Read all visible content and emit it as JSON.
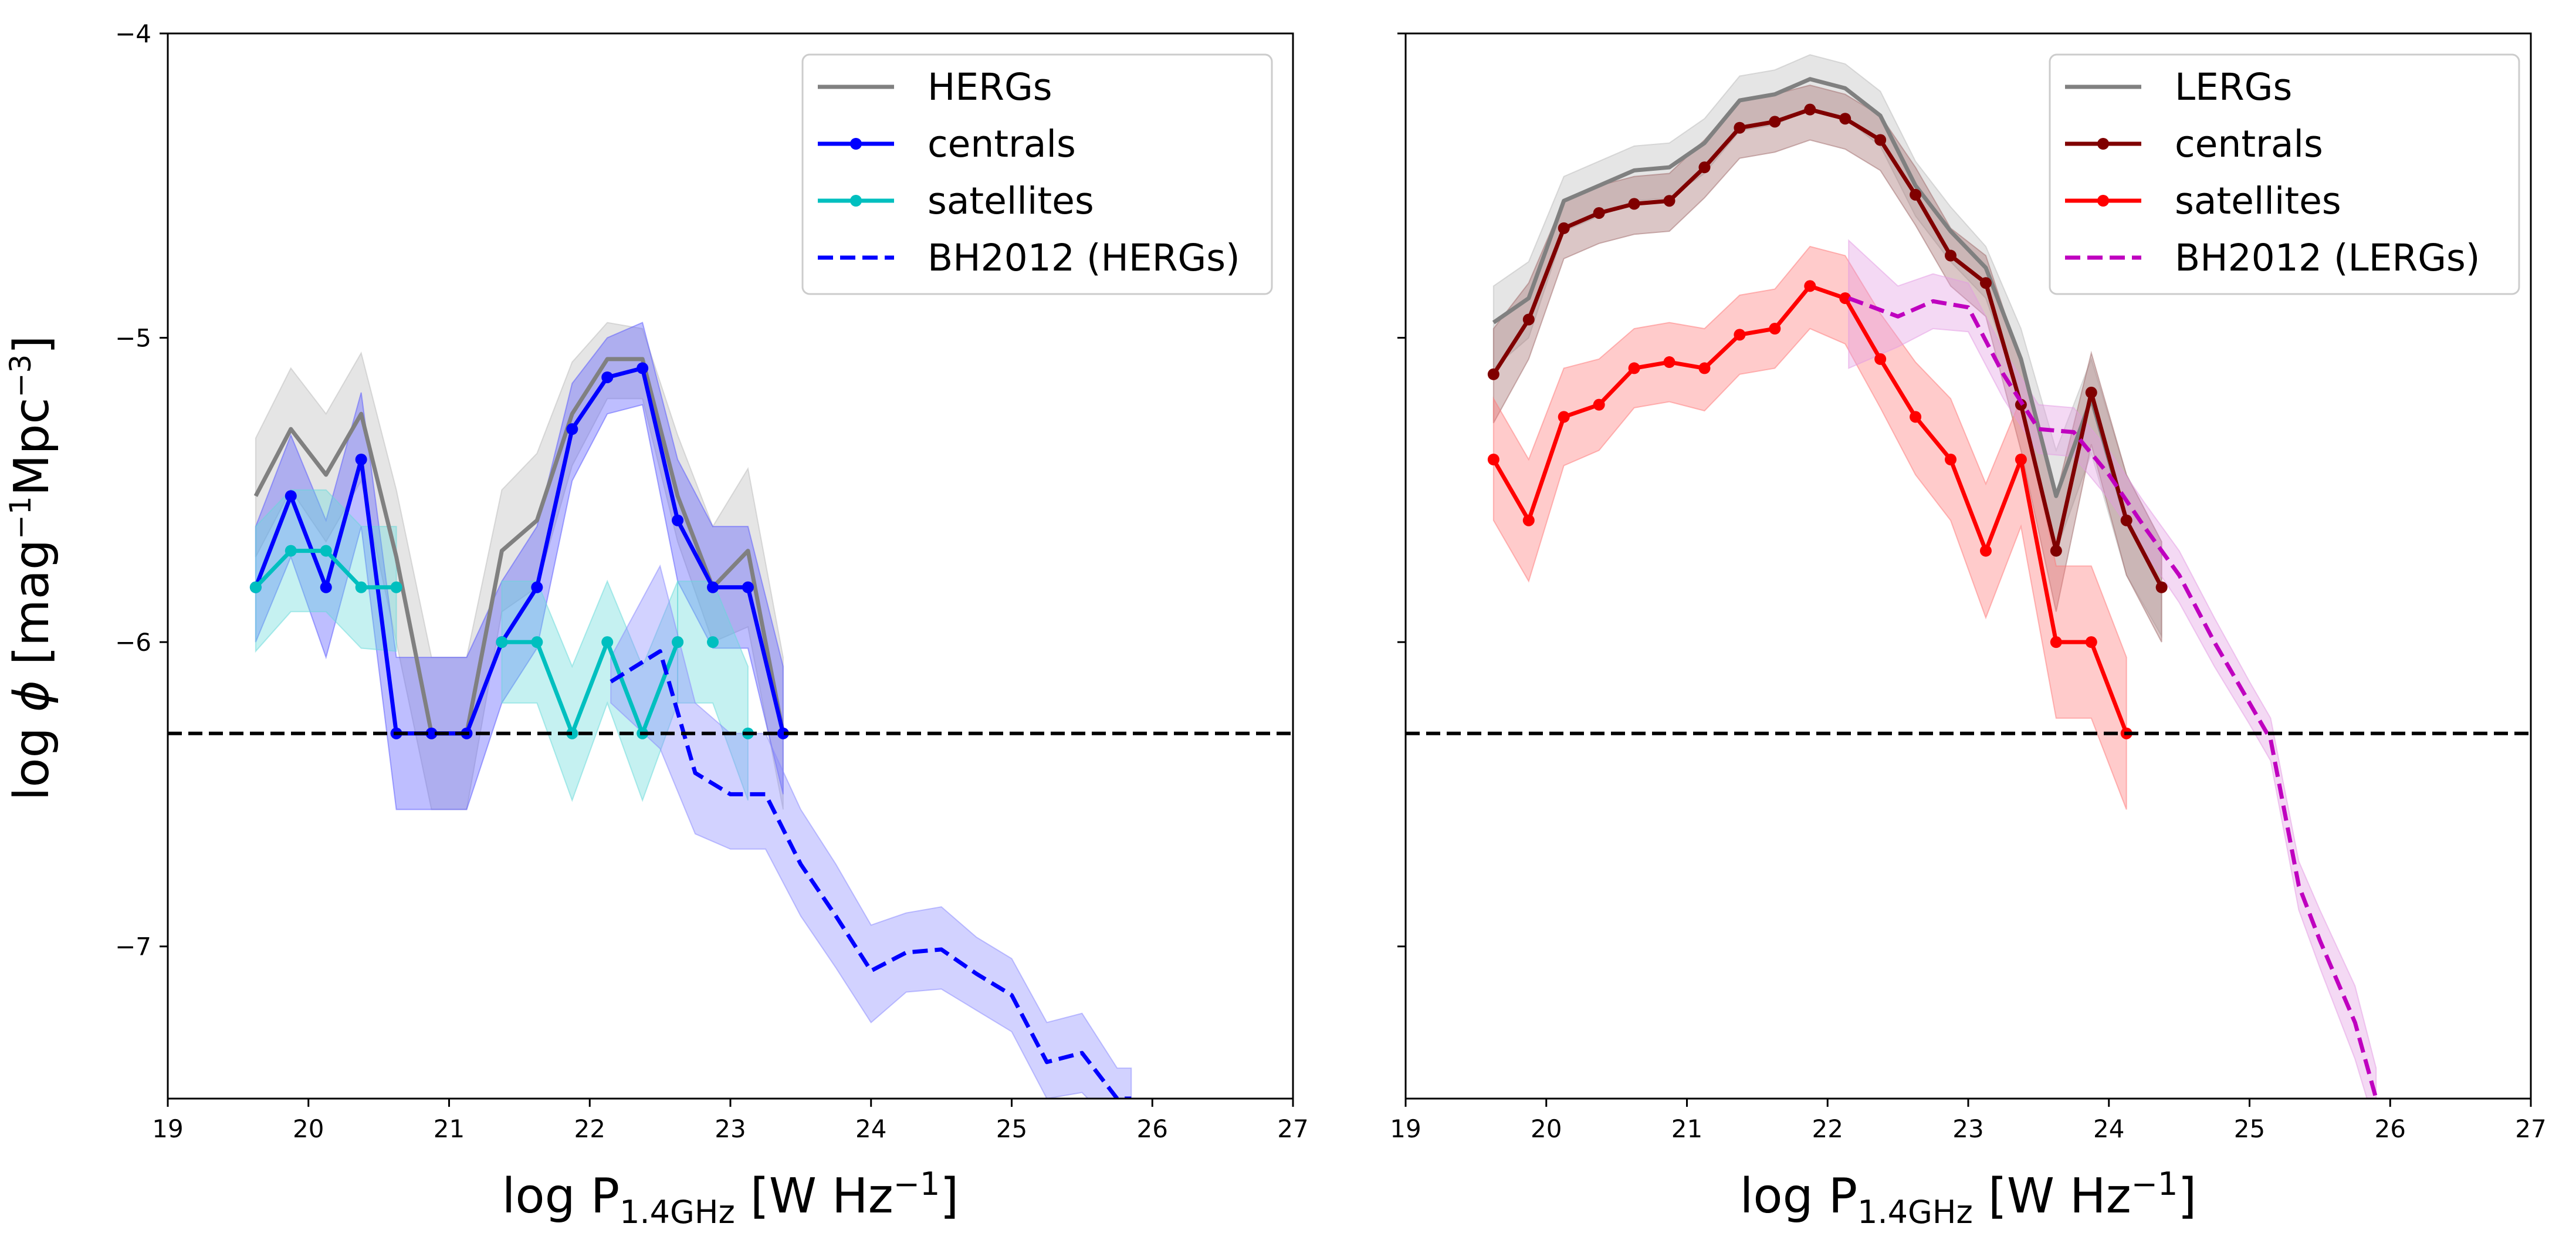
{
  "chart_data": [
    {
      "type": "line",
      "panel": "left",
      "xlabel": "log P_1.4GHz [W Hz^-1]",
      "ylabel": "log φ [mag^-1 Mpc^-3]",
      "xlim": [
        19,
        27
      ],
      "ylim": [
        -7.5,
        -4
      ],
      "xticks": [
        "19",
        "20",
        "21",
        "22",
        "23",
        "24",
        "25",
        "26",
        "27"
      ],
      "yticks": [
        "−7",
        "−6",
        "−5",
        "−4"
      ],
      "hline": -6.3,
      "legend_position": "top-right",
      "series": [
        {
          "name": "HERGs",
          "color": "#808080",
          "style": "solid",
          "markers": false,
          "band": "#bbbbbb",
          "x": [
            19.625,
            19.875,
            20.125,
            20.375,
            20.625,
            20.875,
            21.125,
            21.375,
            21.625,
            21.875,
            22.125,
            22.375,
            22.625,
            22.875,
            23.125,
            23.375
          ],
          "y": [
            -5.52,
            -5.3,
            -5.45,
            -5.25,
            -5.72,
            -6.3,
            -6.3,
            -5.7,
            -5.6,
            -5.25,
            -5.07,
            -5.07,
            -5.52,
            -5.82,
            -5.7,
            -6.3
          ],
          "lo": [
            -5.72,
            -5.5,
            -5.67,
            -5.47,
            -6.0,
            -6.55,
            -6.55,
            -5.9,
            -5.82,
            -5.42,
            -5.2,
            -5.2,
            -5.67,
            -6.0,
            -5.95,
            -6.55
          ],
          "hi": [
            -5.33,
            -5.1,
            -5.25,
            -5.05,
            -5.5,
            -6.05,
            -6.05,
            -5.5,
            -5.38,
            -5.08,
            -4.95,
            -4.97,
            -5.32,
            -5.62,
            -5.43,
            -6.05
          ]
        },
        {
          "name": "centrals",
          "color": "#0000ff",
          "style": "solid",
          "markers": true,
          "band": "#5555ff",
          "x": [
            19.625,
            19.875,
            20.125,
            20.375,
            20.625,
            20.875,
            21.125,
            21.375,
            21.625,
            21.875,
            22.125,
            22.375,
            22.625,
            22.875,
            23.125,
            23.375
          ],
          "y": [
            -5.82,
            -5.52,
            -5.82,
            -5.4,
            -6.3,
            -6.3,
            -6.3,
            -6.0,
            -5.82,
            -5.3,
            -5.13,
            -5.1,
            -5.6,
            -5.82,
            -5.82,
            -6.3
          ],
          "lo": [
            -6.0,
            -5.72,
            -6.05,
            -5.62,
            -6.55,
            -6.55,
            -6.55,
            -6.2,
            -6.02,
            -5.47,
            -5.25,
            -5.22,
            -5.8,
            -6.02,
            -6.02,
            -6.5
          ],
          "hi": [
            -5.62,
            -5.32,
            -5.6,
            -5.18,
            -6.05,
            -6.05,
            -6.05,
            -5.8,
            -5.62,
            -5.15,
            -5.0,
            -4.95,
            -5.4,
            -5.62,
            -5.62,
            -6.08
          ]
        },
        {
          "name": "satellites",
          "color": "#00bfbf",
          "style": "solid",
          "markers": true,
          "band": "#66d9d9",
          "x": [
            19.625,
            19.875,
            20.125,
            20.375,
            20.625
          ],
          "y": [
            -5.82,
            -5.7,
            -5.7,
            -5.82,
            -5.82
          ],
          "lo": [
            -6.03,
            -5.9,
            -5.9,
            -6.02,
            -6.03
          ],
          "hi": [
            -5.62,
            -5.5,
            -5.5,
            -5.62,
            -5.62
          ]
        },
        {
          "name": "",
          "legend": false,
          "color": "#00bfbf",
          "style": "solid",
          "markers": true,
          "band": "#66d9d9",
          "x": [
            21.375,
            21.625,
            21.875,
            22.125,
            22.375,
            22.625
          ],
          "y": [
            -6.0,
            -6.0,
            -6.3,
            -6.0,
            -6.3,
            -6.0
          ],
          "lo": [
            -6.2,
            -6.2,
            -6.52,
            -6.2,
            -6.52,
            -6.2
          ],
          "hi": [
            -5.8,
            -5.8,
            -6.08,
            -5.8,
            -6.08,
            -5.8
          ]
        },
        {
          "name": "",
          "legend": false,
          "color": "#00bfbf",
          "style": "solid",
          "markers": true,
          "band": "#66d9d9",
          "x": [
            22.625,
            22.875,
            23.125
          ],
          "y": [
            -6.0,
            -6.0,
            -6.3
          ],
          "lo": [
            -6.2,
            -6.2,
            -6.52
          ],
          "hi": [
            -5.8,
            -5.8,
            -6.08
          ],
          "line": false
        },
        {
          "name": "BH2012 (HERGs)",
          "color": "#0000ff",
          "style": "dashed",
          "markers": false,
          "band": "#8888ff",
          "x": [
            22.15,
            22.5,
            22.75,
            23.0,
            23.25,
            23.5,
            23.75,
            24.0,
            24.25,
            24.5,
            24.75,
            25.0,
            25.25,
            25.5,
            25.75,
            25.85
          ],
          "y": [
            -6.13,
            -6.03,
            -6.43,
            -6.5,
            -6.5,
            -6.73,
            -6.9,
            -7.08,
            -7.02,
            -7.01,
            -7.09,
            -7.16,
            -7.38,
            -7.35,
            -7.5,
            -7.5
          ],
          "lo": [
            -6.2,
            -6.35,
            -6.63,
            -6.68,
            -6.68,
            -6.9,
            -7.07,
            -7.25,
            -7.15,
            -7.14,
            -7.21,
            -7.28,
            -7.5,
            -7.48,
            -7.6,
            -7.6
          ],
          "hi": [
            -6.05,
            -5.75,
            -6.2,
            -6.3,
            -6.3,
            -6.55,
            -6.73,
            -6.93,
            -6.89,
            -6.87,
            -6.97,
            -7.04,
            -7.25,
            -7.22,
            -7.4,
            -7.4
          ]
        }
      ]
    },
    {
      "type": "line",
      "panel": "right",
      "xlabel": "log P_1.4GHz [W Hz^-1]",
      "ylabel": "",
      "xlim": [
        19,
        27
      ],
      "ylim": [
        -7.5,
        -4
      ],
      "xticks": [
        "19",
        "20",
        "21",
        "22",
        "23",
        "24",
        "25",
        "26",
        "27"
      ],
      "yticks": [],
      "hline": -6.3,
      "legend_position": "top-right",
      "series": [
        {
          "name": "LERGs",
          "color": "#808080",
          "style": "solid",
          "markers": false,
          "band": "#bbbbbb",
          "x": [
            19.625,
            19.875,
            20.125,
            20.375,
            20.625,
            20.875,
            21.125,
            21.375,
            21.625,
            21.875,
            22.125,
            22.375,
            22.625,
            22.875,
            23.125,
            23.375,
            23.625,
            23.875,
            24.125,
            24.375
          ],
          "y": [
            -4.95,
            -4.87,
            -4.55,
            -4.5,
            -4.45,
            -4.44,
            -4.36,
            -4.22,
            -4.2,
            -4.15,
            -4.18,
            -4.27,
            -4.5,
            -4.65,
            -4.77,
            -5.07,
            -5.52,
            -5.2,
            -5.6,
            -5.82
          ],
          "lo": [
            -5.1,
            -5.0,
            -4.65,
            -4.6,
            -4.55,
            -4.54,
            -4.46,
            -4.32,
            -4.3,
            -4.25,
            -4.28,
            -4.37,
            -4.6,
            -4.75,
            -4.87,
            -5.2,
            -5.7,
            -5.38,
            -5.78,
            -5.98
          ],
          "hi": [
            -4.83,
            -4.75,
            -4.47,
            -4.42,
            -4.37,
            -4.36,
            -4.28,
            -4.14,
            -4.12,
            -4.07,
            -4.1,
            -4.19,
            -4.42,
            -4.57,
            -4.7,
            -4.97,
            -5.37,
            -5.07,
            -5.45,
            -5.67
          ]
        },
        {
          "name": "centrals",
          "color": "#800000",
          "style": "solid",
          "markers": true,
          "band": "#a06a6a",
          "x": [
            19.625,
            19.875,
            20.125,
            20.375,
            20.625,
            20.875,
            21.125,
            21.375,
            21.625,
            21.875,
            22.125,
            22.375,
            22.625,
            22.875,
            23.125,
            23.375,
            23.625,
            23.875,
            24.125,
            24.375
          ],
          "y": [
            -5.12,
            -4.94,
            -4.64,
            -4.59,
            -4.56,
            -4.55,
            -4.44,
            -4.31,
            -4.29,
            -4.25,
            -4.28,
            -4.35,
            -4.53,
            -4.73,
            -4.82,
            -5.22,
            -5.7,
            -5.18,
            -5.6,
            -5.82
          ],
          "lo": [
            -5.28,
            -5.07,
            -4.74,
            -4.69,
            -4.66,
            -4.65,
            -4.54,
            -4.41,
            -4.39,
            -4.35,
            -4.38,
            -4.45,
            -4.63,
            -4.83,
            -4.93,
            -5.37,
            -5.9,
            -5.35,
            -5.78,
            -6.0
          ],
          "hi": [
            -4.97,
            -4.82,
            -4.55,
            -4.5,
            -4.47,
            -4.46,
            -4.35,
            -4.22,
            -4.2,
            -4.17,
            -4.2,
            -4.27,
            -4.44,
            -4.64,
            -4.73,
            -5.08,
            -5.52,
            -5.05,
            -5.45,
            -5.67
          ]
        },
        {
          "name": "satellites",
          "color": "#ff0000",
          "style": "solid",
          "markers": true,
          "band": "#ff7777",
          "x": [
            19.625,
            19.875,
            20.125,
            20.375,
            20.625,
            20.875,
            21.125,
            21.375,
            21.625,
            21.875,
            22.125,
            22.375,
            22.625,
            22.875,
            23.125,
            23.375,
            23.625,
            23.875,
            24.125
          ],
          "y": [
            -5.4,
            -5.6,
            -5.26,
            -5.22,
            -5.1,
            -5.08,
            -5.1,
            -4.99,
            -4.97,
            -4.83,
            -4.87,
            -5.07,
            -5.26,
            -5.4,
            -5.7,
            -5.4,
            -6.0,
            -6.0,
            -6.3
          ],
          "lo": [
            -5.6,
            -5.8,
            -5.42,
            -5.37,
            -5.23,
            -5.21,
            -5.24,
            -5.12,
            -5.1,
            -4.97,
            -5.02,
            -5.23,
            -5.45,
            -5.6,
            -5.92,
            -5.62,
            -6.25,
            -6.25,
            -6.55
          ],
          "hi": [
            -5.2,
            -5.4,
            -5.1,
            -5.07,
            -4.97,
            -4.95,
            -4.97,
            -4.86,
            -4.84,
            -4.7,
            -4.73,
            -4.92,
            -5.08,
            -5.2,
            -5.48,
            -5.2,
            -5.75,
            -5.75,
            -6.05
          ]
        },
        {
          "name": "BH2012 (LERGs)",
          "color": "#bf00bf",
          "style": "dashed",
          "markers": false,
          "band": "#e39ae3",
          "x": [
            22.15,
            22.5,
            22.75,
            23.0,
            23.25,
            23.5,
            23.75,
            24.0,
            24.25,
            24.5,
            24.75,
            25.0,
            25.15,
            25.35,
            25.5,
            25.75,
            25.9
          ],
          "y": [
            -4.87,
            -4.93,
            -4.88,
            -4.9,
            -5.12,
            -5.3,
            -5.31,
            -5.45,
            -5.62,
            -5.78,
            -6.0,
            -6.2,
            -6.32,
            -6.8,
            -6.98,
            -7.25,
            -7.5
          ],
          "lo": [
            -5.1,
            -5.03,
            -4.97,
            -4.98,
            -5.2,
            -5.38,
            -5.39,
            -5.53,
            -5.7,
            -5.87,
            -6.08,
            -6.27,
            -6.39,
            -6.88,
            -7.07,
            -7.37,
            -7.6
          ],
          "hi": [
            -4.68,
            -4.83,
            -4.79,
            -4.82,
            -5.04,
            -5.22,
            -5.23,
            -5.37,
            -5.54,
            -5.7,
            -5.92,
            -6.13,
            -6.25,
            -6.72,
            -6.88,
            -7.13,
            -7.4
          ]
        }
      ]
    }
  ]
}
